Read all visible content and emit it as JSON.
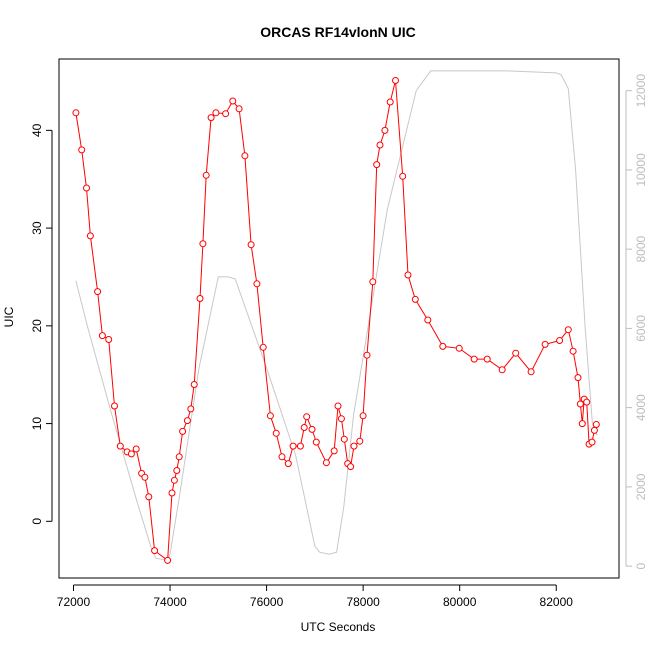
{
  "chart_data": {
    "type": "line",
    "title": "ORCAS RF14vlonN UIC",
    "xlabel": "UTC Seconds",
    "ylabel": "UIC",
    "xlim": [
      71700,
      83300
    ],
    "ylim": [
      -5.8,
      47.3
    ],
    "y2lim": [
      -300,
      12800
    ],
    "x_ticks": [
      72000,
      74000,
      76000,
      78000,
      80000,
      82000
    ],
    "y_ticks": [
      0,
      10,
      20,
      30,
      40
    ],
    "y2_ticks": [
      0,
      2000,
      4000,
      6000,
      8000,
      10000,
      12000
    ],
    "series": [
      {
        "role": "primary",
        "color": "#ff0000",
        "marker": "open-circle",
        "points": [
          [
            72050,
            41.8
          ],
          [
            72170,
            38.0
          ],
          [
            72270,
            34.1
          ],
          [
            72350,
            29.2
          ],
          [
            72500,
            23.5
          ],
          [
            72600,
            19.0
          ],
          [
            72730,
            18.6
          ],
          [
            72850,
            11.8
          ],
          [
            72970,
            7.7
          ],
          [
            73110,
            7.1
          ],
          [
            73200,
            6.9
          ],
          [
            73300,
            7.4
          ],
          [
            73410,
            4.9
          ],
          [
            73480,
            4.5
          ],
          [
            73560,
            2.5
          ],
          [
            73680,
            -3.0
          ],
          [
            73950,
            -4.0
          ],
          [
            74040,
            2.9
          ],
          [
            74090,
            4.2
          ],
          [
            74140,
            5.2
          ],
          [
            74190,
            6.6
          ],
          [
            74260,
            9.2
          ],
          [
            74360,
            10.3
          ],
          [
            74430,
            11.5
          ],
          [
            74500,
            14.0
          ],
          [
            74620,
            22.8
          ],
          [
            74680,
            28.4
          ],
          [
            74750,
            35.4
          ],
          [
            74850,
            41.3
          ],
          [
            74950,
            41.8
          ],
          [
            75150,
            41.7
          ],
          [
            75300,
            43.0
          ],
          [
            75430,
            42.2
          ],
          [
            75550,
            37.4
          ],
          [
            75680,
            28.3
          ],
          [
            75800,
            24.3
          ],
          [
            75930,
            17.8
          ],
          [
            76080,
            10.8
          ],
          [
            76200,
            9.0
          ],
          [
            76320,
            6.6
          ],
          [
            76450,
            5.9
          ],
          [
            76550,
            7.7
          ],
          [
            76700,
            7.7
          ],
          [
            76780,
            9.6
          ],
          [
            76830,
            10.7
          ],
          [
            76940,
            9.4
          ],
          [
            77030,
            8.1
          ],
          [
            77240,
            6.0
          ],
          [
            77400,
            7.2
          ],
          [
            77480,
            11.8
          ],
          [
            77550,
            10.5
          ],
          [
            77610,
            8.4
          ],
          [
            77680,
            5.9
          ],
          [
            77740,
            5.6
          ],
          [
            77810,
            7.7
          ],
          [
            77930,
            8.2
          ],
          [
            78000,
            10.8
          ],
          [
            78080,
            17.0
          ],
          [
            78200,
            24.5
          ],
          [
            78280,
            36.5
          ],
          [
            78350,
            38.5
          ],
          [
            78450,
            40.0
          ],
          [
            78560,
            42.9
          ],
          [
            78670,
            45.1
          ],
          [
            78820,
            35.3
          ],
          [
            78930,
            25.2
          ],
          [
            79080,
            22.7
          ],
          [
            79340,
            20.6
          ],
          [
            79650,
            17.9
          ],
          [
            79990,
            17.7
          ],
          [
            80300,
            16.6
          ],
          [
            80570,
            16.6
          ],
          [
            80880,
            15.5
          ],
          [
            81160,
            17.2
          ],
          [
            81480,
            15.3
          ],
          [
            81770,
            18.1
          ],
          [
            82070,
            18.5
          ],
          [
            82250,
            19.6
          ],
          [
            82350,
            17.4
          ],
          [
            82450,
            14.7
          ],
          [
            82500,
            12.0
          ],
          [
            82540,
            10.0
          ],
          [
            82580,
            12.5
          ],
          [
            82630,
            12.2
          ],
          [
            82680,
            7.9
          ],
          [
            82740,
            8.1
          ],
          [
            82790,
            9.3
          ],
          [
            82830,
            9.9
          ]
        ]
      },
      {
        "role": "secondary",
        "color": "#c8c8c8",
        "points": [
          [
            72050,
            7200
          ],
          [
            72300,
            6000
          ],
          [
            72800,
            3800
          ],
          [
            73300,
            1700
          ],
          [
            73600,
            500
          ],
          [
            73700,
            200
          ],
          [
            73950,
            150
          ],
          [
            74000,
            300
          ],
          [
            74200,
            1800
          ],
          [
            74600,
            5000
          ],
          [
            75000,
            7300
          ],
          [
            75200,
            7300
          ],
          [
            75350,
            7250
          ],
          [
            76000,
            5000
          ],
          [
            76600,
            2800
          ],
          [
            77000,
            500
          ],
          [
            77100,
            350
          ],
          [
            77300,
            300
          ],
          [
            77450,
            350
          ],
          [
            77600,
            1500
          ],
          [
            77800,
            3800
          ],
          [
            78500,
            9000
          ],
          [
            79100,
            12000
          ],
          [
            79400,
            12500
          ],
          [
            80000,
            12500
          ],
          [
            81000,
            12500
          ],
          [
            82000,
            12450
          ],
          [
            82100,
            12400
          ],
          [
            82250,
            12050
          ],
          [
            82400,
            10000
          ],
          [
            82600,
            6000
          ],
          [
            82750,
            3600
          ],
          [
            82850,
            3300
          ]
        ]
      }
    ]
  }
}
